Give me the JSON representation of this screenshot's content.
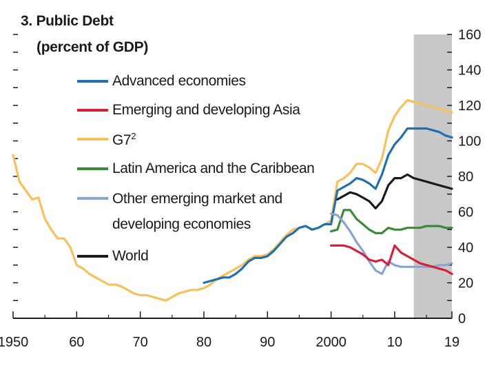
{
  "chart_data": {
    "type": "line",
    "title": "3. Public Debt",
    "subtitle": "(percent of GDP)",
    "xlabel": "",
    "ylabel": "",
    "xlim": [
      1950,
      2019
    ],
    "ylim": [
      0,
      160
    ],
    "x_ticks": [
      {
        "value": 1950,
        "label": "1950"
      },
      {
        "value": 1960,
        "label": "60"
      },
      {
        "value": 1970,
        "label": "70"
      },
      {
        "value": 1980,
        "label": "80"
      },
      {
        "value": 1990,
        "label": "90"
      },
      {
        "value": 2000,
        "label": "2000"
      },
      {
        "value": 2010,
        "label": "10"
      },
      {
        "value": 2019,
        "label": "19"
      }
    ],
    "y_ticks": [
      {
        "value": 0,
        "label": "0"
      },
      {
        "value": 20,
        "label": "20"
      },
      {
        "value": 40,
        "label": "40"
      },
      {
        "value": 60,
        "label": "60"
      },
      {
        "value": 80,
        "label": "80"
      },
      {
        "value": 100,
        "label": "100"
      },
      {
        "value": 120,
        "label": "120"
      },
      {
        "value": 140,
        "label": "140"
      },
      {
        "value": 160,
        "label": "160"
      }
    ],
    "projection_shade": {
      "from": 2013,
      "to": 2019,
      "color": "#c8c8c8"
    },
    "series": [
      {
        "name": "Advanced economies",
        "color": "#1f6fb2",
        "sup": "",
        "x": [
          1980,
          1982,
          1983,
          1984,
          1985,
          1986,
          1987,
          1988,
          1989,
          1990,
          1991,
          1992,
          1993,
          1994,
          1995,
          1996,
          1997,
          1998,
          1999,
          2000,
          2001,
          2002,
          2003,
          2004,
          2005,
          2006,
          2007,
          2008,
          2009,
          2010,
          2011,
          2012,
          2013,
          2014,
          2015,
          2016,
          2017,
          2018,
          2019
        ],
        "y": [
          20,
          22,
          23,
          23,
          25,
          28,
          32,
          34,
          34,
          35,
          38,
          42,
          46,
          48,
          51,
          52,
          50,
          51,
          53,
          53,
          72,
          74,
          76,
          79,
          78,
          76,
          73,
          81,
          92,
          98,
          102,
          107,
          107,
          107,
          107,
          106,
          105,
          103,
          102
        ]
      },
      {
        "name": "Emerging and developing Asia",
        "color": "#d6213c",
        "sup": "",
        "x": [
          2000,
          2001,
          2002,
          2003,
          2004,
          2005,
          2006,
          2007,
          2008,
          2009,
          2010,
          2011,
          2012,
          2013,
          2014,
          2015,
          2016,
          2017,
          2018,
          2019
        ],
        "y": [
          41,
          41,
          41,
          40,
          38,
          36,
          33,
          32,
          33,
          30,
          41,
          37,
          35,
          33,
          31,
          30,
          29,
          28,
          27,
          25
        ]
      },
      {
        "name": "G7",
        "color": "#f7c05d",
        "sup": "2",
        "x": [
          1950,
          1951,
          1952,
          1953,
          1954,
          1955,
          1956,
          1957,
          1958,
          1959,
          1960,
          1961,
          1962,
          1963,
          1964,
          1965,
          1966,
          1967,
          1968,
          1969,
          1970,
          1971,
          1972,
          1973,
          1974,
          1975,
          1976,
          1977,
          1978,
          1979,
          1980,
          1981,
          1982,
          1983,
          1984,
          1985,
          1986,
          1987,
          1988,
          1989,
          1990,
          1991,
          1992,
          1993,
          1994,
          1995,
          1996,
          1997,
          1998,
          1999,
          2000,
          2001,
          2002,
          2003,
          2004,
          2005,
          2006,
          2007,
          2008,
          2009,
          2010,
          2011,
          2012,
          2013,
          2014,
          2015,
          2016,
          2017,
          2018,
          2019
        ],
        "y": [
          92,
          77,
          72,
          67,
          68,
          56,
          50,
          45,
          45,
          40,
          30,
          28,
          25,
          23,
          21,
          19,
          19,
          18,
          16,
          14,
          13,
          13,
          12,
          11,
          10,
          12,
          14,
          15,
          16,
          16,
          17,
          19,
          22,
          24,
          26,
          28,
          30,
          33,
          35,
          35,
          36,
          39,
          43,
          47,
          50,
          51,
          52,
          50,
          51,
          53,
          55,
          77,
          79,
          82,
          87,
          87,
          85,
          82,
          90,
          106,
          114,
          119,
          123,
          122,
          121,
          120,
          119,
          118,
          117,
          116
        ]
      },
      {
        "name": "Latin America and the Caribbean",
        "color": "#3a8a3a",
        "sup": "",
        "x": [
          2000,
          2001,
          2002,
          2003,
          2004,
          2005,
          2006,
          2007,
          2008,
          2009,
          2010,
          2011,
          2012,
          2013,
          2014,
          2015,
          2016,
          2017,
          2018,
          2019
        ],
        "y": [
          49,
          50,
          61,
          61,
          56,
          53,
          50,
          48,
          48,
          51,
          50,
          50,
          51,
          51,
          51,
          52,
          52,
          52,
          51,
          51
        ]
      },
      {
        "name": "Other emerging market and developing economies",
        "color": "#8aa4cf",
        "sup": "",
        "x": [
          2000,
          2001,
          2002,
          2003,
          2004,
          2005,
          2006,
          2007,
          2008,
          2009,
          2010,
          2011,
          2012,
          2013,
          2014,
          2015,
          2016,
          2017,
          2018,
          2019
        ],
        "y": [
          59,
          58,
          54,
          49,
          43,
          38,
          32,
          27,
          25,
          32,
          30,
          29,
          29,
          29,
          29,
          29,
          29,
          30,
          30,
          31
        ]
      },
      {
        "name": "World",
        "color": "#1a1a1a",
        "sup": "",
        "x": [
          2001,
          2002,
          2003,
          2004,
          2005,
          2006,
          2007,
          2008,
          2009,
          2010,
          2011,
          2012,
          2013,
          2014,
          2015,
          2016,
          2017,
          2018,
          2019
        ],
        "y": [
          67,
          69,
          71,
          70,
          68,
          66,
          62,
          66,
          75,
          79,
          79,
          81,
          79,
          78,
          77,
          76,
          75,
          74,
          73
        ]
      }
    ]
  }
}
